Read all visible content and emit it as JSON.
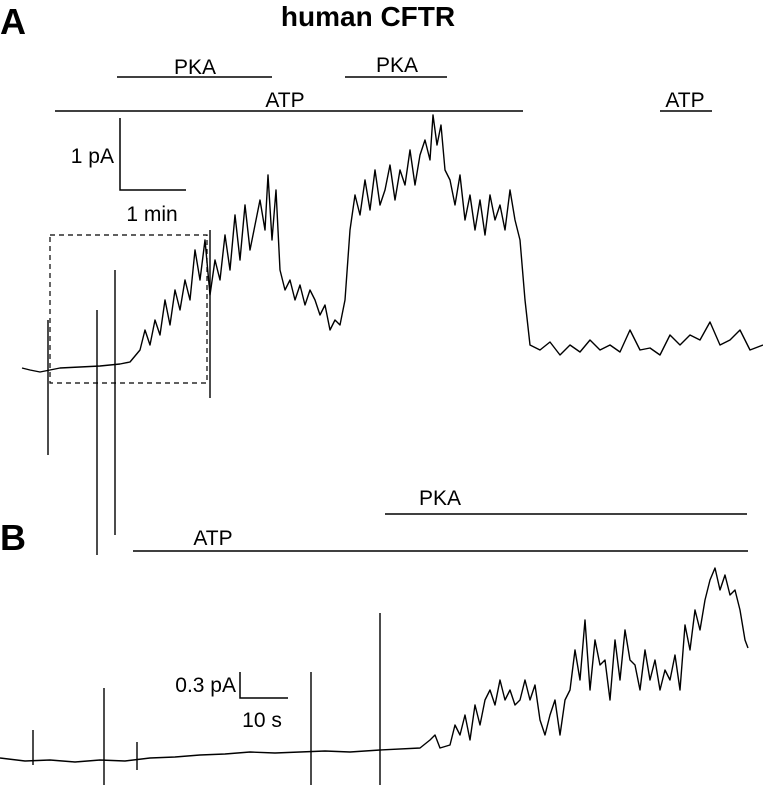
{
  "panels": [
    {
      "label": "A",
      "title": "human CFTR",
      "bars": [
        {
          "label": "PKA"
        },
        {
          "label": "PKA"
        },
        {
          "label": "ATP"
        },
        {
          "label": "ATP"
        }
      ],
      "scale": {
        "y": "1 pA",
        "x": "1 min"
      }
    },
    {
      "label": "B",
      "bars": [
        {
          "label": "PKA"
        },
        {
          "label": "ATP"
        }
      ],
      "scale": {
        "y": "0.3 pA",
        "x": "10 s"
      }
    }
  ]
}
